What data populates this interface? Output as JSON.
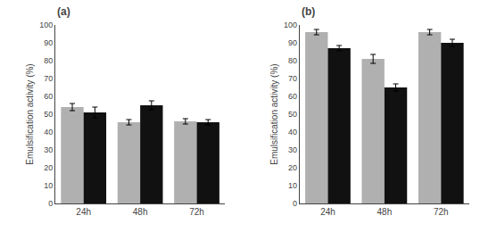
{
  "chart_data": [
    {
      "type": "bar",
      "title": "(a)",
      "categories": [
        "24h",
        "48h",
        "72h"
      ],
      "series": [
        {
          "color": "#b0b0b0",
          "values": [
            54,
            45.5,
            46
          ],
          "errors": [
            2.0,
            1.5,
            1.5
          ]
        },
        {
          "color": "#111111",
          "values": [
            51,
            55,
            45.5
          ],
          "errors": [
            3.0,
            2.5,
            1.5
          ]
        }
      ],
      "ylabel": "Emulsification activity (%)",
      "ylim": [
        0,
        100
      ],
      "yticks": [
        0,
        10,
        20,
        30,
        40,
        50,
        60,
        70,
        80,
        90,
        100
      ],
      "grid": false
    },
    {
      "type": "bar",
      "title": "(b)",
      "categories": [
        "24h",
        "48h",
        "72h"
      ],
      "series": [
        {
          "color": "#b0b0b0",
          "values": [
            96,
            81,
            96
          ],
          "errors": [
            1.5,
            2.5,
            1.5
          ]
        },
        {
          "color": "#111111",
          "values": [
            87,
            65,
            90
          ],
          "errors": [
            1.5,
            2.0,
            2.0
          ]
        }
      ],
      "ylabel": "Emulsification activity (%)",
      "ylim": [
        0,
        100
      ],
      "yticks": [
        0,
        10,
        20,
        30,
        40,
        50,
        60,
        70,
        80,
        90,
        100
      ],
      "grid": false
    }
  ]
}
